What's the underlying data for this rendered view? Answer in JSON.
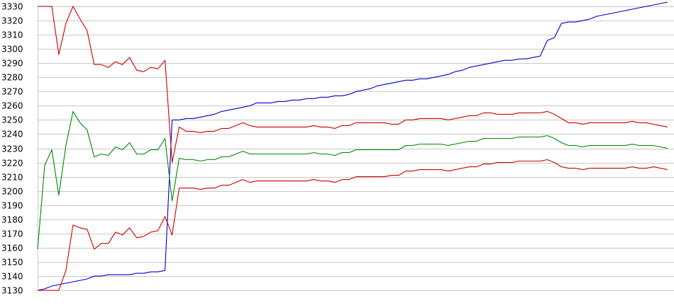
{
  "chart_data": {
    "type": "line",
    "title": "",
    "xlabel": "",
    "ylabel": "",
    "ylim": [
      3130,
      3330
    ],
    "yticks": [
      3130,
      3140,
      3150,
      3160,
      3170,
      3180,
      3190,
      3200,
      3210,
      3220,
      3230,
      3240,
      3250,
      3260,
      3270,
      3280,
      3290,
      3300,
      3310,
      3320,
      3330
    ],
    "grid": true,
    "legend": "none",
    "x": [
      0,
      1,
      2,
      3,
      4,
      5,
      6,
      7,
      8,
      9,
      10,
      11,
      12,
      13,
      14,
      15,
      16,
      17,
      18,
      19,
      20,
      21,
      22,
      23,
      24,
      25,
      26,
      27,
      28,
      29,
      30,
      31,
      32,
      33,
      34,
      35,
      36,
      37,
      38,
      39,
      40,
      41,
      42,
      43,
      44,
      45,
      46,
      47,
      48,
      49,
      50,
      51,
      52,
      53,
      54,
      55,
      56,
      57,
      58,
      59,
      60,
      61,
      62,
      63,
      64,
      65,
      66,
      67,
      68,
      69,
      70,
      71,
      72,
      73,
      74,
      75,
      76,
      77,
      78,
      79,
      80,
      81,
      82,
      83,
      84,
      85,
      86,
      87,
      88,
      89
    ],
    "series": [
      {
        "color": "#0000cc",
        "values": [
          3130,
          3131,
          3133,
          3134,
          3135,
          3136,
          3137,
          3138,
          3140,
          3140,
          3141,
          3141,
          3141,
          3141,
          3142,
          3142,
          3143,
          3143,
          3144,
          3250,
          3250,
          3251,
          3251,
          3252,
          3253,
          3254,
          3256,
          3257,
          3258,
          3259,
          3260,
          3262,
          3262,
          3262,
          3263,
          3263,
          3264,
          3264,
          3265,
          3265,
          3266,
          3266,
          3267,
          3267,
          3268,
          3270,
          3271,
          3272,
          3274,
          3275,
          3276,
          3277,
          3278,
          3278,
          3279,
          3279,
          3280,
          3281,
          3282,
          3284,
          3285,
          3287,
          3288,
          3289,
          3290,
          3291,
          3292,
          3292,
          3293,
          3293,
          3294,
          3295,
          3306,
          3308,
          3318,
          3319,
          3319,
          3320,
          3321,
          3323,
          3324,
          3325,
          3326,
          3327,
          3328,
          3329,
          3330,
          3331,
          3332,
          3333
        ]
      },
      {
        "color": "#cc0000",
        "values": [
          3330,
          3330,
          3330,
          3296,
          3318,
          3330,
          3321,
          3313,
          3289,
          3289,
          3287,
          3291,
          3289,
          3294,
          3285,
          3284,
          3287,
          3286,
          3292,
          3220,
          3245,
          3242,
          3242,
          3241,
          3242,
          3242,
          3244,
          3244,
          3246,
          3248,
          3246,
          3245,
          3245,
          3245,
          3245,
          3245,
          3245,
          3245,
          3245,
          3246,
          3245,
          3245,
          3244,
          3246,
          3246,
          3248,
          3248,
          3248,
          3248,
          3248,
          3247,
          3247,
          3250,
          3250,
          3251,
          3251,
          3251,
          3251,
          3250,
          3251,
          3252,
          3253,
          3253,
          3255,
          3255,
          3254,
          3254,
          3254,
          3255,
          3255,
          3255,
          3255,
          3256,
          3254,
          3251,
          3248,
          3248,
          3247,
          3248,
          3248,
          3248,
          3248,
          3248,
          3248,
          3249,
          3248,
          3248,
          3247,
          3246,
          3245
        ]
      },
      {
        "color": "#008800",
        "values": [
          3159,
          3218,
          3229,
          3197,
          3232,
          3256,
          3248,
          3243,
          3224,
          3226,
          3225,
          3231,
          3229,
          3234,
          3226,
          3226,
          3229,
          3229,
          3237,
          3193,
          3223,
          3222,
          3222,
          3221,
          3222,
          3222,
          3224,
          3224,
          3226,
          3228,
          3226,
          3226,
          3226,
          3226,
          3226,
          3226,
          3226,
          3226,
          3226,
          3227,
          3226,
          3226,
          3225,
          3227,
          3227,
          3229,
          3229,
          3229,
          3229,
          3229,
          3229,
          3229,
          3232,
          3232,
          3233,
          3233,
          3233,
          3233,
          3232,
          3233,
          3234,
          3235,
          3235,
          3237,
          3237,
          3237,
          3237,
          3237,
          3238,
          3238,
          3238,
          3238,
          3239,
          3237,
          3234,
          3232,
          3232,
          3231,
          3232,
          3232,
          3232,
          3232,
          3232,
          3232,
          3233,
          3232,
          3232,
          3232,
          3231,
          3230
        ]
      },
      {
        "color": "#cc0000",
        "values": [
          3130,
          3130,
          3130,
          3130,
          3144,
          3176,
          3174,
          3173,
          3159,
          3163,
          3163,
          3171,
          3169,
          3174,
          3167,
          3168,
          3171,
          3172,
          3182,
          3169,
          3202,
          3202,
          3202,
          3201,
          3202,
          3202,
          3204,
          3204,
          3206,
          3208,
          3206,
          3207,
          3207,
          3207,
          3207,
          3207,
          3207,
          3207,
          3207,
          3208,
          3207,
          3207,
          3206,
          3208,
          3208,
          3210,
          3210,
          3210,
          3210,
          3210,
          3211,
          3211,
          3214,
          3214,
          3215,
          3215,
          3215,
          3215,
          3214,
          3215,
          3216,
          3217,
          3217,
          3219,
          3219,
          3220,
          3220,
          3220,
          3221,
          3221,
          3221,
          3221,
          3222,
          3220,
          3217,
          3216,
          3216,
          3215,
          3216,
          3216,
          3216,
          3216,
          3216,
          3216,
          3217,
          3216,
          3216,
          3217,
          3216,
          3215
        ]
      }
    ]
  }
}
